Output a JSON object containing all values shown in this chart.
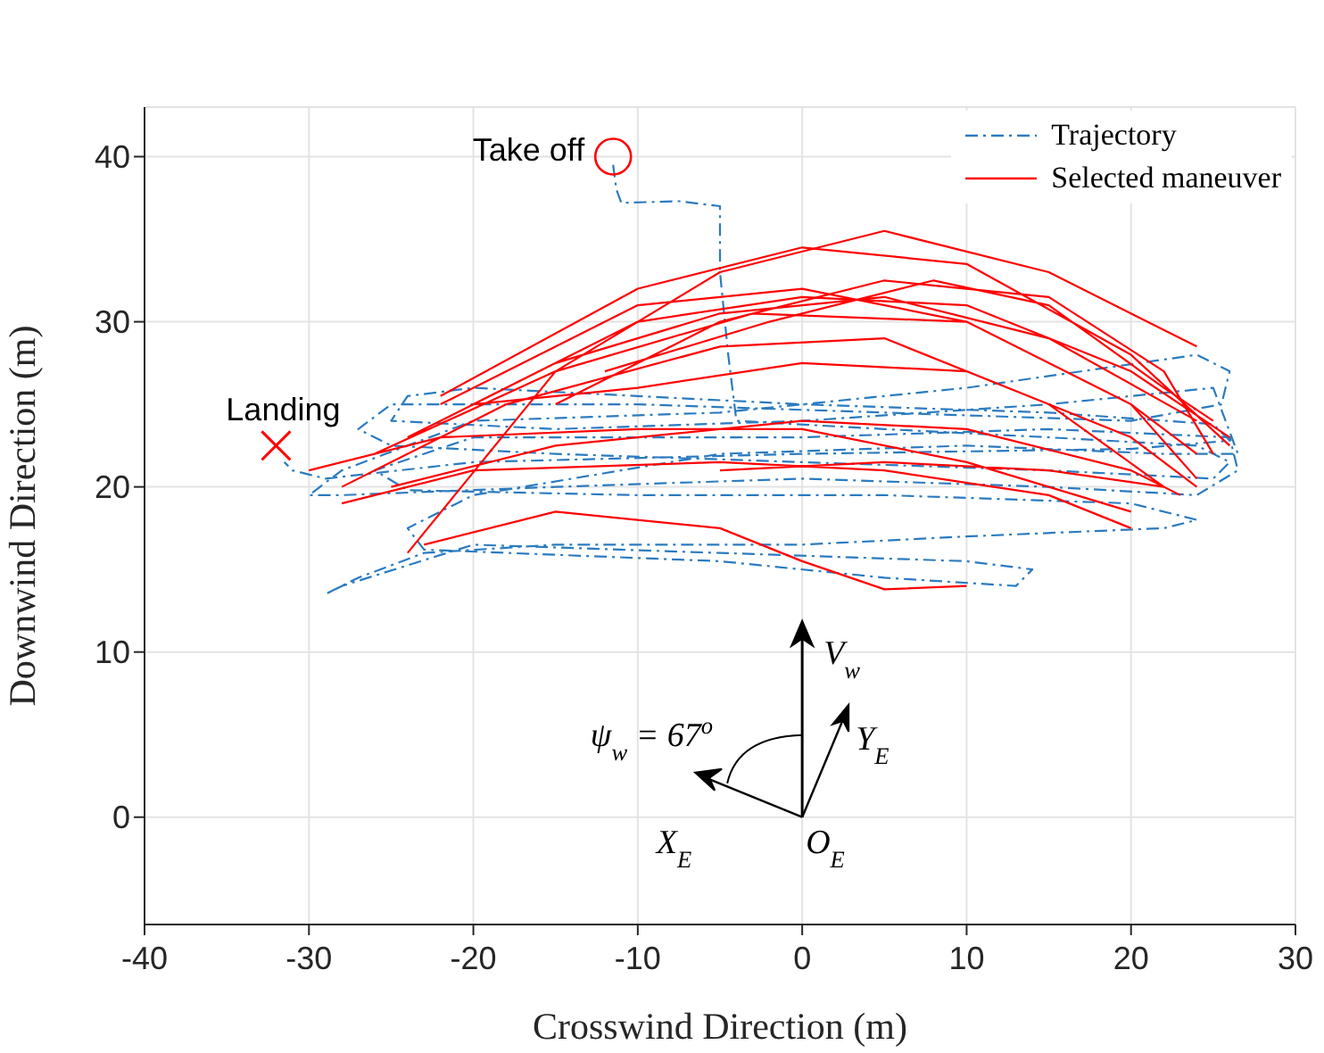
{
  "chart_data": {
    "type": "line",
    "xlabel": "Crosswind Direction (m)",
    "ylabel": "Downwind Direction (m)",
    "xlim": [
      -40,
      30
    ],
    "xticks": [
      -40,
      -30,
      -20,
      -10,
      0,
      10,
      20,
      30
    ],
    "ylim": [
      -6.5,
      43
    ],
    "yticks": [
      0,
      10,
      20,
      30,
      40
    ],
    "grid": true,
    "legend": "top right",
    "series": [
      {
        "name": "Trajectory",
        "color": "#2b7bc0",
        "line_style": "dashdot",
        "marker": "none",
        "x": [
          -11.5,
          -11.3,
          -11,
          -7.5,
          -5,
          -5,
          -4.5,
          -4,
          5,
          15,
          24,
          26,
          25,
          15,
          0,
          -15,
          -25,
          -27,
          -25,
          -10,
          5,
          20,
          25.5,
          26,
          24,
          10,
          -5,
          -20,
          -28,
          -30,
          -28,
          -15,
          0,
          15,
          24,
          26.5,
          26,
          15,
          0,
          -20,
          -26,
          -24,
          -10,
          5,
          20,
          24,
          22,
          10,
          0,
          -15,
          -23,
          -27,
          -29,
          -28,
          -20,
          -5,
          10,
          14,
          13,
          5,
          -5,
          -23,
          -24,
          -20,
          -5,
          10,
          22,
          26.5,
          25,
          15,
          0,
          -15,
          -25,
          -24,
          -20,
          -10,
          0,
          15,
          25,
          26,
          20,
          0,
          -20,
          -29,
          -31,
          -31.5
        ],
        "values": [
          39.5,
          38,
          37.2,
          37.3,
          37,
          33,
          28,
          24,
          23.5,
          23,
          22.5,
          21.5,
          20.5,
          21,
          21.5,
          22,
          22.5,
          23.5,
          25,
          25,
          24.5,
          24,
          25,
          27,
          28,
          26,
          24.5,
          24,
          21,
          19.5,
          19.5,
          20,
          20.5,
          20,
          19.5,
          21,
          23,
          23.5,
          23,
          23,
          21,
          19.8,
          19.5,
          19.5,
          19,
          18,
          17.5,
          17,
          16.5,
          16.5,
          16,
          14.5,
          13.5,
          14,
          16.5,
          16,
          15.5,
          15,
          14,
          14.5,
          15.5,
          16.2,
          17.5,
          19.5,
          22,
          22.5,
          22,
          22,
          26,
          25,
          24,
          23.5,
          24,
          25.5,
          26,
          25.5,
          25,
          24.5,
          23.8,
          22.8,
          22.3,
          22,
          21.5,
          20.5,
          21,
          21.5
        ]
      },
      {
        "name": "Selected maneuver",
        "color": "#ff0000",
        "line_style": "solid",
        "marker": "none",
        "x": [
          -24,
          -15,
          -5,
          5,
          15,
          24,
          null,
          -22,
          -10,
          0,
          10,
          20,
          24,
          null,
          -26,
          -15,
          -3,
          10,
          20,
          24,
          null,
          -28,
          -18,
          -5,
          5,
          15,
          22,
          null,
          -20,
          -10,
          0,
          10,
          20,
          26,
          null,
          -22,
          -10,
          0,
          10,
          20,
          26,
          null,
          -15,
          -5,
          5,
          15,
          22,
          25,
          null,
          -25,
          -15,
          0,
          10,
          20,
          23,
          null,
          -30,
          -22,
          -10,
          0,
          10,
          20,
          null,
          -23,
          -15,
          -5,
          0,
          5,
          10,
          null,
          -28,
          -20,
          -5,
          5,
          15,
          20,
          null,
          -20,
          -10,
          0,
          10,
          20,
          24,
          null,
          -12,
          -2,
          8,
          15,
          22,
          25,
          null,
          -5,
          5,
          15,
          22,
          null,
          -24,
          -15,
          -5,
          5,
          15,
          24
        ],
        "values": [
          16,
          27,
          33,
          35.5,
          33,
          28.5,
          null,
          25,
          31,
          32,
          30,
          25,
          22,
          null,
          22,
          27,
          30.5,
          30,
          25,
          20.5,
          null,
          20,
          25,
          28.5,
          29,
          25,
          20,
          null,
          25,
          30,
          31.5,
          31,
          27,
          23,
          null,
          25.5,
          32,
          34.5,
          33.5,
          28,
          22.5,
          null,
          25,
          30,
          32.5,
          31.5,
          27,
          22,
          null,
          20,
          22.5,
          24,
          23.5,
          21,
          19.5,
          null,
          21,
          23,
          23.5,
          23.5,
          21.5,
          18.5,
          null,
          16.5,
          18.5,
          17.5,
          15.5,
          13.8,
          14,
          null,
          19,
          21,
          21.5,
          21,
          19.5,
          17.5,
          null,
          25,
          26,
          27.5,
          27,
          23,
          20,
          null,
          27,
          30,
          32.5,
          31,
          26,
          24,
          null,
          21,
          21.5,
          21,
          20,
          null,
          23,
          27.5,
          30.5,
          31.5,
          29,
          24
        ]
      },
      {
        "type": "scatter",
        "color": "#ff0000",
        "marker": "circle",
        "x": [
          -11.5
        ],
        "values": [
          40
        ]
      },
      {
        "type": "scatter",
        "color": "#ff0000",
        "marker": "cross",
        "x": [
          -32
        ],
        "values": [
          22.5
        ]
      }
    ],
    "annotations": [
      {
        "text": "Take off",
        "x": -11.5,
        "y": 40
      },
      {
        "text": "Landing",
        "x": -32,
        "y": 22.5
      },
      "ψ$_{w}$ = 67$^{o}$",
      "V$_{w}$",
      "Y$_{E}$",
      "X$_{E}$",
      "O$_{E}$"
    ]
  }
}
